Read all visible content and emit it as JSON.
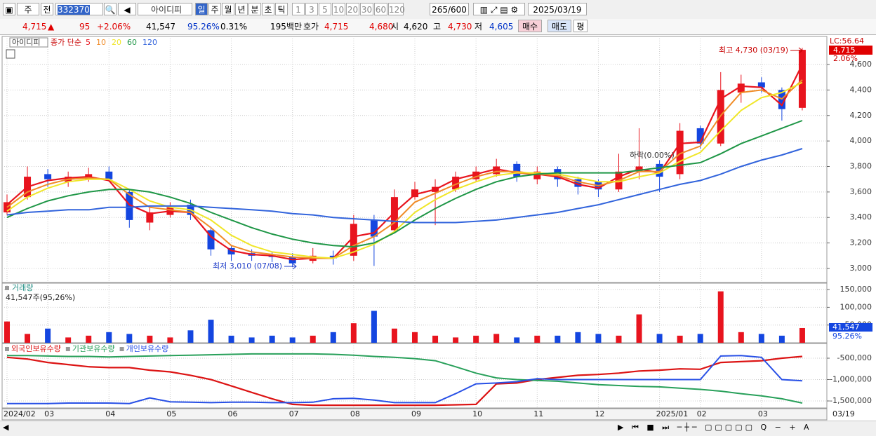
{
  "toolbar": {
    "market": "주",
    "prev": "전",
    "code": "332370",
    "name": "아이디피",
    "periods": [
      "일",
      "주",
      "월",
      "년",
      "분",
      "초",
      "틱"
    ],
    "intervals": [
      "1",
      "3",
      "5",
      "10",
      "20",
      "30",
      "60",
      "120"
    ],
    "count": "265/600",
    "date": "2025/03/19"
  },
  "quote": {
    "price": "4,715",
    "arrow": "▲",
    "change": "95",
    "change_pct": "+2.06%",
    "volume": "41,547",
    "volume_ratio": "95.26%",
    "turnover": "0.31%",
    "amount": "195백만",
    "bid_label": "호가",
    "ask": "4,715",
    "bid": "4,680",
    "open_label": "시",
    "open": "4,620",
    "high_label": "고",
    "high": "4,730",
    "low_label": "저",
    "low": "4,605",
    "buy": "매수",
    "sell": "매도",
    "avg": "평"
  },
  "chart_data": [
    {
      "type": "candlestick",
      "name": "아이디피",
      "legend_prefix": "종가 단순",
      "categories": [
        "2024/02",
        null,
        "03",
        null,
        null,
        "04",
        null,
        null,
        "05",
        null,
        null,
        "06",
        null,
        null,
        "07",
        null,
        null,
        "08",
        null,
        null,
        "09",
        null,
        null,
        "10",
        null,
        null,
        "11",
        null,
        null,
        "12",
        null,
        null,
        "2025/01",
        null,
        "02",
        null,
        null,
        "03",
        null,
        null
      ],
      "x_end_label": "03/19",
      "open": [
        3440,
        3560,
        3740,
        3680,
        3700,
        3760,
        3600,
        3360,
        3420,
        3500,
        3300,
        3160,
        3120,
        3100,
        3090,
        3060,
        3100,
        3100,
        3380,
        3300,
        3560,
        3600,
        3620,
        3700,
        3740,
        3820,
        3700,
        3780,
        3700,
        3680,
        3620,
        3760,
        3820,
        3740,
        4100,
        3980,
        4380,
        4460,
        4400,
        4260
      ],
      "high": [
        3580,
        3800,
        3780,
        3760,
        3790,
        3800,
        3620,
        3480,
        3520,
        3540,
        3320,
        3180,
        3150,
        3130,
        3120,
        3160,
        3140,
        3420,
        3420,
        3620,
        3680,
        3700,
        3760,
        3800,
        3860,
        3840,
        3800,
        3800,
        3720,
        3700,
        3900,
        4100,
        3850,
        4140,
        4120,
        4540,
        4520,
        4500,
        4420,
        4730
      ],
      "low": [
        3420,
        3540,
        3640,
        3640,
        3680,
        3680,
        3320,
        3300,
        3400,
        3380,
        3100,
        3060,
        3060,
        3050,
        3010,
        3040,
        3030,
        3060,
        3020,
        3280,
        3540,
        3340,
        3600,
        3680,
        3720,
        3680,
        3660,
        3640,
        3580,
        3560,
        3600,
        3700,
        3600,
        3700,
        3940,
        3960,
        4300,
        4380,
        4160,
        4240
      ],
      "close": [
        3520,
        3720,
        3700,
        3720,
        3740,
        3700,
        3380,
        3440,
        3480,
        3420,
        3150,
        3110,
        3100,
        3090,
        3040,
        3100,
        3080,
        3350,
        3250,
        3560,
        3620,
        3640,
        3720,
        3760,
        3800,
        3720,
        3760,
        3700,
        3640,
        3620,
        3760,
        3800,
        3720,
        4080,
        3980,
        4400,
        4450,
        4420,
        4250,
        4715
      ],
      "up_color": "#e8141e",
      "down_color": "#1446e0",
      "series": [
        {
          "name": "5",
          "color": "#e8141e",
          "values": [
            3500,
            3640,
            3690,
            3710,
            3720,
            3690,
            3500,
            3430,
            3450,
            3440,
            3250,
            3140,
            3110,
            3100,
            3070,
            3080,
            3080,
            3250,
            3280,
            3440,
            3580,
            3620,
            3700,
            3740,
            3780,
            3750,
            3740,
            3720,
            3660,
            3630,
            3720,
            3780,
            3750,
            3980,
            3990,
            4330,
            4430,
            4420,
            4280,
            4600
          ]
        },
        {
          "name": "10",
          "color": "#f08c28",
          "values": [
            3480,
            3600,
            3660,
            3700,
            3710,
            3700,
            3580,
            3480,
            3460,
            3440,
            3320,
            3180,
            3130,
            3110,
            3090,
            3080,
            3080,
            3180,
            3250,
            3360,
            3520,
            3590,
            3660,
            3720,
            3760,
            3760,
            3740,
            3730,
            3680,
            3650,
            3690,
            3760,
            3760,
            3900,
            3960,
            4200,
            4380,
            4400,
            4330,
            4480
          ]
        },
        {
          "name": "20",
          "color": "#f0e628",
          "values": [
            3450,
            3560,
            3630,
            3680,
            3700,
            3700,
            3620,
            3530,
            3480,
            3460,
            3380,
            3260,
            3180,
            3130,
            3110,
            3090,
            3080,
            3130,
            3190,
            3290,
            3440,
            3540,
            3620,
            3680,
            3730,
            3750,
            3750,
            3740,
            3710,
            3680,
            3680,
            3720,
            3750,
            3840,
            3910,
            4080,
            4240,
            4340,
            4380,
            4460
          ]
        },
        {
          "name": "60",
          "color": "#1e9646",
          "values": [
            3400,
            3470,
            3530,
            3570,
            3600,
            3620,
            3620,
            3600,
            3560,
            3510,
            3440,
            3380,
            3320,
            3270,
            3230,
            3200,
            3180,
            3170,
            3200,
            3280,
            3380,
            3470,
            3550,
            3620,
            3680,
            3720,
            3740,
            3750,
            3750,
            3750,
            3750,
            3770,
            3790,
            3810,
            3830,
            3900,
            3980,
            4040,
            4100,
            4160
          ]
        },
        {
          "name": "120",
          "color": "#3264dc",
          "values": [
            3420,
            3440,
            3450,
            3460,
            3460,
            3480,
            3480,
            3490,
            3490,
            3490,
            3480,
            3470,
            3460,
            3450,
            3430,
            3420,
            3400,
            3390,
            3380,
            3370,
            3360,
            3360,
            3360,
            3370,
            3380,
            3400,
            3420,
            3440,
            3470,
            3500,
            3540,
            3580,
            3620,
            3660,
            3690,
            3740,
            3800,
            3850,
            3890,
            3940
          ]
        }
      ],
      "ylim": [
        2890,
        4820
      ],
      "yticks": [
        {
          "value": 3000,
          "label": "3,000"
        },
        {
          "value": 3200,
          "label": "3,200"
        },
        {
          "value": 3400,
          "label": "3,400"
        },
        {
          "value": 3600,
          "label": "3,600"
        },
        {
          "value": 3800,
          "label": "3,800"
        },
        {
          "value": 4000,
          "label": "4,000"
        },
        {
          "value": 4200,
          "label": "4,200"
        },
        {
          "value": 4400,
          "label": "4,400"
        },
        {
          "value": 4600,
          "label": "4,600"
        }
      ],
      "grid": true,
      "high_label": "최고 4,730 (03/19)",
      "low_label": "최저 3,010 (07/08)",
      "event_label": "하락(0.00%)",
      "lc_label": "LC:56.64",
      "last_price": "4,715",
      "last_change": "2.06%"
    },
    {
      "type": "bar",
      "title": "거래량",
      "subtitle": "41,547주(95,26%)",
      "values": [
        60000,
        25000,
        40000,
        15000,
        20000,
        30000,
        25000,
        20000,
        15000,
        35000,
        65000,
        20000,
        15000,
        20000,
        15000,
        20000,
        30000,
        55000,
        90000,
        40000,
        30000,
        20000,
        15000,
        20000,
        25000,
        15000,
        20000,
        20000,
        30000,
        25000,
        20000,
        80000,
        25000,
        20000,
        25000,
        145000,
        30000,
        25000,
        20000,
        41547
      ],
      "ylim": [
        0,
        168000
      ],
      "yticks": [
        {
          "value": 50000,
          "label": "50,000"
        },
        {
          "value": 100000,
          "label": "100,000"
        },
        {
          "value": 150000,
          "label": "150,000"
        }
      ],
      "grid": true,
      "last_value": "41,547",
      "last_ratio": "95.26%"
    },
    {
      "type": "line",
      "series": [
        {
          "name": "외국인보유수량",
          "color": "#dc1414",
          "values": [
            -480000,
            -520000,
            -600000,
            -650000,
            -700000,
            -720000,
            -720000,
            -780000,
            -820000,
            -900000,
            -1000000,
            -1150000,
            -1300000,
            -1450000,
            -1580000,
            -1600000,
            -1600000,
            -1600000,
            -1600000,
            -1600000,
            -1600000,
            -1600000,
            -1590000,
            -1580000,
            -1100000,
            -1080000,
            -1000000,
            -950000,
            -900000,
            -880000,
            -850000,
            -800000,
            -780000,
            -750000,
            -760000,
            -600000,
            -580000,
            -560000,
            -500000,
            -460000
          ]
        },
        {
          "name": "기관보유수량",
          "color": "#28a05a",
          "values": [
            -440000,
            -440000,
            -450000,
            -460000,
            -460000,
            -470000,
            -460000,
            -450000,
            -440000,
            -430000,
            -420000,
            -410000,
            -400000,
            -400000,
            -400000,
            -400000,
            -410000,
            -430000,
            -460000,
            -480000,
            -510000,
            -560000,
            -700000,
            -850000,
            -960000,
            -1000000,
            -1020000,
            -1040000,
            -1080000,
            -1120000,
            -1140000,
            -1160000,
            -1170000,
            -1200000,
            -1230000,
            -1270000,
            -1330000,
            -1380000,
            -1450000,
            -1550000
          ]
        },
        {
          "name": "개인보유수량",
          "color": "#2850e6",
          "values": [
            -1560000,
            -1560000,
            -1560000,
            -1550000,
            -1550000,
            -1550000,
            -1560000,
            -1430000,
            -1520000,
            -1530000,
            -1540000,
            -1530000,
            -1530000,
            -1540000,
            -1540000,
            -1530000,
            -1450000,
            -1440000,
            -1480000,
            -1540000,
            -1540000,
            -1540000,
            -1330000,
            -1100000,
            -1080000,
            -1050000,
            -980000,
            -1000000,
            -1000000,
            -1000000,
            -1000000,
            -1000000,
            -1000000,
            -1000000,
            -1000000,
            -450000,
            -440000,
            -480000,
            -1000000,
            -1030000
          ]
        }
      ],
      "ylim": [
        -1664000,
        -156000
      ],
      "yticks": [
        {
          "value": -500000,
          "label": "-500,000"
        },
        {
          "value": -1000000,
          "label": "-1,000,000"
        },
        {
          "value": -1500000,
          "label": "-1,500,000"
        }
      ],
      "grid": true
    }
  ]
}
